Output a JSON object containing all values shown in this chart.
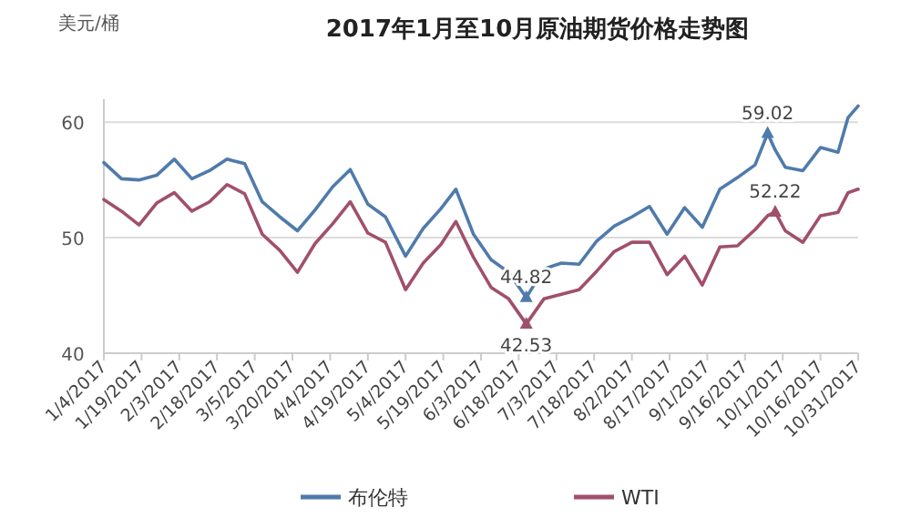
{
  "chart_data": {
    "type": "line",
    "title": "2017年1月至10月原油期货价格走势图",
    "ylabel": "美元/桶",
    "x": [
      "2017-01-04",
      "2017-01-11",
      "2017-01-18",
      "2017-01-25",
      "2017-02-01",
      "2017-02-08",
      "2017-02-15",
      "2017-02-22",
      "2017-03-01",
      "2017-03-08",
      "2017-03-15",
      "2017-03-22",
      "2017-03-29",
      "2017-04-05",
      "2017-04-12",
      "2017-04-19",
      "2017-04-26",
      "2017-05-04",
      "2017-05-11",
      "2017-05-18",
      "2017-05-24",
      "2017-05-31",
      "2017-06-07",
      "2017-06-14",
      "2017-06-21",
      "2017-06-28",
      "2017-07-05",
      "2017-07-12",
      "2017-07-19",
      "2017-07-26",
      "2017-08-02",
      "2017-08-09",
      "2017-08-16",
      "2017-08-23",
      "2017-08-30",
      "2017-09-06",
      "2017-09-13",
      "2017-09-20",
      "2017-09-25",
      "2017-09-28",
      "2017-10-02",
      "2017-10-09",
      "2017-10-16",
      "2017-10-23",
      "2017-10-27",
      "2017-10-31"
    ],
    "series": [
      {
        "name": "布伦特",
        "color": "#4f7bab",
        "values": [
          56.5,
          55.1,
          55.0,
          55.4,
          56.8,
          55.1,
          55.8,
          56.8,
          56.4,
          53.1,
          51.8,
          50.6,
          52.4,
          54.4,
          55.9,
          52.9,
          51.8,
          48.4,
          50.8,
          52.5,
          54.2,
          50.3,
          48.1,
          47.0,
          44.82,
          47.3,
          47.8,
          47.7,
          49.7,
          51.0,
          51.8,
          52.7,
          50.3,
          52.6,
          50.9,
          54.2,
          55.2,
          56.3,
          59.02,
          57.6,
          56.1,
          55.8,
          57.8,
          57.4,
          60.4,
          61.4
        ]
      },
      {
        "name": "WTI",
        "color": "#a0506a",
        "values": [
          53.3,
          52.3,
          51.1,
          53.0,
          53.9,
          52.3,
          53.1,
          54.6,
          53.8,
          50.3,
          48.9,
          47.0,
          49.5,
          51.2,
          53.1,
          50.4,
          49.6,
          45.5,
          47.8,
          49.4,
          51.4,
          48.3,
          45.7,
          44.7,
          42.53,
          44.7,
          45.1,
          45.5,
          47.1,
          48.8,
          49.6,
          49.6,
          46.8,
          48.4,
          45.9,
          49.2,
          49.3,
          50.7,
          51.9,
          52.22,
          50.6,
          49.6,
          51.9,
          52.2,
          53.9,
          54.2
        ]
      }
    ],
    "xlim": [
      "2017-01-04",
      "2017-10-31"
    ],
    "xticks": [
      {
        "value": "2017-01-04",
        "label": "1/4/2017"
      },
      {
        "value": "2017-01-19",
        "label": "1/19/2017"
      },
      {
        "value": "2017-02-03",
        "label": "2/3/2017"
      },
      {
        "value": "2017-02-18",
        "label": "2/18/2017"
      },
      {
        "value": "2017-03-05",
        "label": "3/5/2017"
      },
      {
        "value": "2017-03-20",
        "label": "3/20/2017"
      },
      {
        "value": "2017-04-04",
        "label": "4/4/2017"
      },
      {
        "value": "2017-04-19",
        "label": "4/19/2017"
      },
      {
        "value": "2017-05-04",
        "label": "5/4/2017"
      },
      {
        "value": "2017-05-19",
        "label": "5/19/2017"
      },
      {
        "value": "2017-06-03",
        "label": "6/3/2017"
      },
      {
        "value": "2017-06-18",
        "label": "6/18/2017"
      },
      {
        "value": "2017-07-03",
        "label": "7/3/2017"
      },
      {
        "value": "2017-07-18",
        "label": "7/18/2017"
      },
      {
        "value": "2017-08-02",
        "label": "8/2/2017"
      },
      {
        "value": "2017-08-17",
        "label": "8/17/2017"
      },
      {
        "value": "2017-09-01",
        "label": "9/1/2017"
      },
      {
        "value": "2017-09-16",
        "label": "9/16/2017"
      },
      {
        "value": "2017-10-01",
        "label": "10/1/2017"
      },
      {
        "value": "2017-10-16",
        "label": "10/16/2017"
      },
      {
        "value": "2017-10-31",
        "label": "10/31/2017"
      }
    ],
    "ylim": [
      40,
      62
    ],
    "yticks": [
      40,
      50,
      60
    ],
    "grid": "y",
    "legend": "bottom",
    "annotations": [
      {
        "text": "59.02",
        "x": "2017-09-25",
        "y": 59.02
      },
      {
        "text": "52.22",
        "x": "2017-09-28",
        "y": 52.22
      },
      {
        "text": "44.82",
        "x": "2017-06-21",
        "y": 44.82
      },
      {
        "text": "42.53",
        "x": "2017-06-21",
        "y": 42.53
      }
    ]
  }
}
